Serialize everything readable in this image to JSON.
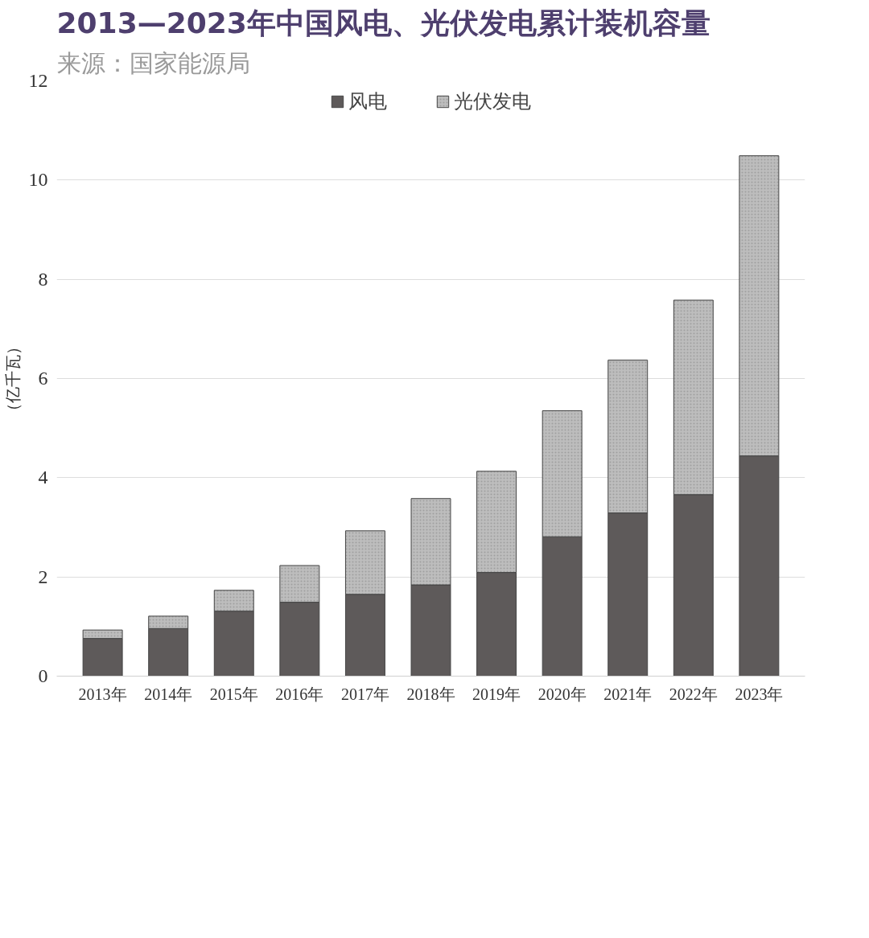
{
  "chart_data": {
    "type": "bar",
    "title": "2013—2023年中国风电、光伏发电累计装机容量",
    "subtitle": "来源：国家能源局",
    "ylabel": "（亿千瓦）",
    "categories": [
      "2013年",
      "2014年",
      "2015年",
      "2016年",
      "2017年",
      "2018年",
      "2019年",
      "2020年",
      "2021年",
      "2022年",
      "2023年"
    ],
    "stacked": true,
    "series": [
      {
        "name": "风电",
        "color": "#5e5a5a",
        "values": [
          0.76,
          0.96,
          1.31,
          1.49,
          1.65,
          1.84,
          2.09,
          2.81,
          3.29,
          3.66,
          4.44
        ]
      },
      {
        "name": "光伏发电",
        "color": "#bdbdbd",
        "values": [
          0.17,
          0.25,
          0.42,
          0.74,
          1.28,
          1.74,
          2.04,
          2.54,
          3.08,
          3.92,
          6.05
        ]
      }
    ],
    "ylim": [
      0,
      12
    ],
    "yticks": [
      0,
      2,
      4,
      6,
      8,
      10,
      12
    ],
    "grid": "y",
    "legend": "top"
  }
}
